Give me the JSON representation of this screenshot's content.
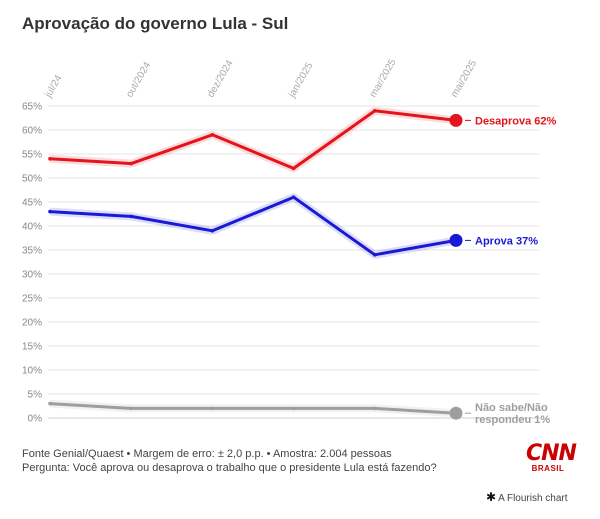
{
  "title": "Aprovação do governo Lula - Sul",
  "footer": {
    "source": "Fonte Genial/Quaest • Margem de erro: ± 2,0 p.p. • Amostra: 2.004 pessoas",
    "question": "Pergunta: Você aprova ou desaprova o trabalho que o presidente Lula está fazendo?"
  },
  "logo": {
    "brand": "CNN",
    "sub": "BRASIL"
  },
  "credit": {
    "icon": "asterisk-icon",
    "text": "A Flourish chart"
  },
  "chart_data": {
    "type": "line",
    "x": [
      "jul/24",
      "out/2024",
      "dez/2024",
      "jan/2025",
      "mar/2025",
      "mai/2025"
    ],
    "y_ticks": [
      "0%",
      "5%",
      "10%",
      "15%",
      "20%",
      "25%",
      "30%",
      "35%",
      "40%",
      "45%",
      "50%",
      "55%",
      "60%",
      "65%"
    ],
    "ylim": [
      0,
      65
    ],
    "grid": true,
    "series": [
      {
        "label_lines": [
          "Desaprova 62%"
        ],
        "color": "#e3141b",
        "values": [
          54,
          53,
          59,
          52,
          64,
          62
        ]
      },
      {
        "label_lines": [
          "Aprova 37%"
        ],
        "color": "#1a1ad6",
        "values": [
          43,
          42,
          39,
          46,
          34,
          37
        ]
      },
      {
        "label_lines": [
          "Não sabe/Não",
          "respondeu 1%"
        ],
        "color": "#9e9e9e",
        "values": [
          3,
          2,
          2,
          2,
          2,
          1
        ]
      }
    ]
  }
}
